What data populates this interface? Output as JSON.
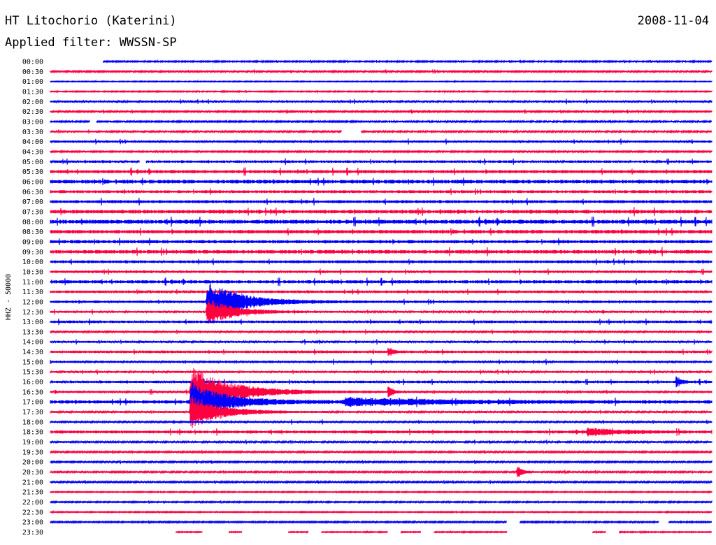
{
  "header": {
    "station": "HT Litochorio (Katerini)",
    "date": "2008-11-04",
    "filter": "Applied filter: WWSSN-SP"
  },
  "chart_data": {
    "type": "line",
    "title": "HT Litochorio (Katerini)",
    "subtitle": "Applied filter: WWSSN-SP",
    "ylabel": "HHZ - 50000",
    "xlabel": "",
    "grid": false,
    "series_colors": [
      "#0000ff",
      "#ff0040"
    ],
    "rows": [
      {
        "label": "00:00",
        "color": "#0000ff",
        "start": 0.08,
        "end": 1.0,
        "noise": 0.7
      },
      {
        "label": "00:30",
        "color": "#ff0040",
        "start": 0.0,
        "end": 1.0,
        "noise": 0.9
      },
      {
        "label": "01:00",
        "color": "#0000ff",
        "start": 0.0,
        "end": 1.0,
        "noise": 0.5
      },
      {
        "label": "01:30",
        "color": "#ff0040",
        "start": 0.0,
        "end": 1.0,
        "noise": 0.6
      },
      {
        "label": "02:00",
        "color": "#0000ff",
        "start": 0.0,
        "end": 1.0,
        "noise": 1.2
      },
      {
        "label": "02:30",
        "color": "#ff0040",
        "start": 0.0,
        "end": 1.0,
        "noise": 0.9
      },
      {
        "label": "03:00",
        "color": "#0000ff",
        "start": 0.0,
        "end": 1.0,
        "noise": 0.8,
        "gaps": [
          [
            0.06,
            0.07
          ]
        ]
      },
      {
        "label": "03:30",
        "color": "#ff0040",
        "start": 0.0,
        "end": 1.0,
        "noise": 1.0,
        "gaps": [
          [
            0.44,
            0.47
          ]
        ]
      },
      {
        "label": "04:00",
        "color": "#0000ff",
        "start": 0.0,
        "end": 1.0,
        "noise": 1.3
      },
      {
        "label": "04:30",
        "color": "#ff0040",
        "start": 0.0,
        "end": 1.0,
        "noise": 0.8
      },
      {
        "label": "05:00",
        "color": "#0000ff",
        "start": 0.0,
        "end": 1.0,
        "noise": 1.4,
        "gaps": [
          [
            0.135,
            0.145
          ]
        ]
      },
      {
        "label": "05:30",
        "color": "#ff0040",
        "start": 0.0,
        "end": 1.0,
        "noise": 1.8
      },
      {
        "label": "06:00",
        "color": "#0000ff",
        "start": 0.0,
        "end": 1.0,
        "noise": 2.0
      },
      {
        "label": "06:30",
        "color": "#ff0040",
        "start": 0.0,
        "end": 1.0,
        "noise": 1.6
      },
      {
        "label": "07:00",
        "color": "#0000ff",
        "start": 0.0,
        "end": 1.0,
        "noise": 1.7
      },
      {
        "label": "07:30",
        "color": "#ff0040",
        "start": 0.0,
        "end": 1.0,
        "noise": 2.0
      },
      {
        "label": "08:00",
        "color": "#0000ff",
        "start": 0.0,
        "end": 1.0,
        "noise": 2.2
      },
      {
        "label": "08:30",
        "color": "#ff0040",
        "start": 0.0,
        "end": 1.0,
        "noise": 2.0
      },
      {
        "label": "09:00",
        "color": "#0000ff",
        "start": 0.0,
        "end": 1.0,
        "noise": 1.8
      },
      {
        "label": "09:30",
        "color": "#ff0040",
        "start": 0.0,
        "end": 1.0,
        "noise": 2.0
      },
      {
        "label": "10:00",
        "color": "#0000ff",
        "start": 0.0,
        "end": 1.0,
        "noise": 1.6
      },
      {
        "label": "10:30",
        "color": "#ff0040",
        "start": 0.0,
        "end": 1.0,
        "noise": 1.4
      },
      {
        "label": "11:00",
        "color": "#0000ff",
        "start": 0.0,
        "end": 1.0,
        "noise": 1.8
      },
      {
        "label": "11:30",
        "color": "#ff0040",
        "start": 0.0,
        "end": 1.0,
        "noise": 1.4
      },
      {
        "label": "12:00",
        "color": "#0000ff",
        "start": 0.0,
        "end": 1.0,
        "noise": 1.4
      },
      {
        "label": "12:30",
        "color": "#ff0040",
        "start": 0.0,
        "end": 1.0,
        "noise": 1.2
      },
      {
        "label": "13:00",
        "color": "#0000ff",
        "start": 0.0,
        "end": 1.0,
        "noise": 1.4
      },
      {
        "label": "13:30",
        "color": "#ff0040",
        "start": 0.0,
        "end": 1.0,
        "noise": 1.1
      },
      {
        "label": "14:00",
        "color": "#0000ff",
        "start": 0.0,
        "end": 1.0,
        "noise": 1.2
      },
      {
        "label": "14:30",
        "color": "#ff0040",
        "start": 0.0,
        "end": 1.0,
        "noise": 1.4
      },
      {
        "label": "15:00",
        "color": "#0000ff",
        "start": 0.0,
        "end": 1.0,
        "noise": 1.3
      },
      {
        "label": "15:30",
        "color": "#ff0040",
        "start": 0.0,
        "end": 1.0,
        "noise": 1.2
      },
      {
        "label": "16:00",
        "color": "#0000ff",
        "start": 0.0,
        "end": 1.0,
        "noise": 1.4
      },
      {
        "label": "16:30",
        "color": "#ff0040",
        "start": 0.0,
        "end": 1.0,
        "noise": 1.2
      },
      {
        "label": "17:00",
        "color": "#0000ff",
        "start": 0.0,
        "end": 1.0,
        "noise": 1.8
      },
      {
        "label": "17:30",
        "color": "#ff0040",
        "start": 0.0,
        "end": 1.0,
        "noise": 1.1
      },
      {
        "label": "18:00",
        "color": "#0000ff",
        "start": 0.0,
        "end": 1.0,
        "noise": 1.1
      },
      {
        "label": "18:30",
        "color": "#ff0040",
        "start": 0.0,
        "end": 1.0,
        "noise": 1.6
      },
      {
        "label": "19:00",
        "color": "#0000ff",
        "start": 0.0,
        "end": 1.0,
        "noise": 1.0
      },
      {
        "label": "19:30",
        "color": "#ff0040",
        "start": 0.0,
        "end": 1.0,
        "noise": 0.9
      },
      {
        "label": "20:00",
        "color": "#0000ff",
        "start": 0.0,
        "end": 1.0,
        "noise": 0.9
      },
      {
        "label": "20:30",
        "color": "#ff0040",
        "start": 0.0,
        "end": 1.0,
        "noise": 0.9
      },
      {
        "label": "21:00",
        "color": "#0000ff",
        "start": 0.0,
        "end": 1.0,
        "noise": 0.9
      },
      {
        "label": "21:30",
        "color": "#ff0040",
        "start": 0.0,
        "end": 1.0,
        "noise": 0.6
      },
      {
        "label": "22:00",
        "color": "#0000ff",
        "start": 0.0,
        "end": 1.0,
        "noise": 0.7
      },
      {
        "label": "22:30",
        "color": "#ff0040",
        "start": 0.0,
        "end": 1.0,
        "noise": 0.6
      },
      {
        "label": "23:00",
        "color": "#0000ff",
        "start": 0.0,
        "end": 1.0,
        "noise": 0.8,
        "gaps": [
          [
            0.69,
            0.71
          ],
          [
            0.92,
            0.935
          ]
        ]
      },
      {
        "label": "23:30",
        "color": "#ff0040",
        "start": 0.0,
        "end": 1.0,
        "noise": 0.6,
        "segments": [
          [
            0.19,
            0.23
          ],
          [
            0.27,
            0.29
          ],
          [
            0.36,
            0.39
          ],
          [
            0.41,
            0.51
          ],
          [
            0.53,
            0.56
          ],
          [
            0.58,
            0.69
          ],
          [
            0.82,
            0.84
          ],
          [
            0.86,
            1.0
          ]
        ]
      }
    ],
    "events": [
      {
        "row": "12:00",
        "x": 0.235,
        "amplitude": 30,
        "duration": 0.07
      },
      {
        "row": "12:30",
        "x": 0.235,
        "amplitude": 22,
        "duration": 0.05
      },
      {
        "row": "16:30",
        "x": 0.21,
        "amplitude": 38,
        "duration": 0.08
      },
      {
        "row": "17:00",
        "x": 0.21,
        "amplitude": 30,
        "duration": 0.07
      },
      {
        "row": "17:30",
        "x": 0.21,
        "amplitude": 26,
        "duration": 0.06
      },
      {
        "row": "17:00",
        "x": 0.44,
        "amplitude": 6,
        "duration": 0.18
      },
      {
        "row": "20:30",
        "x": 0.705,
        "amplitude": 12,
        "duration": 0.01
      },
      {
        "row": "18:30",
        "x": 0.81,
        "amplitude": 6,
        "duration": 0.06
      },
      {
        "row": "14:30",
        "x": 0.51,
        "amplitude": 8,
        "duration": 0.01
      },
      {
        "row": "16:30",
        "x": 0.51,
        "amplitude": 10,
        "duration": 0.01
      },
      {
        "row": "16:00",
        "x": 0.945,
        "amplitude": 8,
        "duration": 0.01
      }
    ]
  }
}
